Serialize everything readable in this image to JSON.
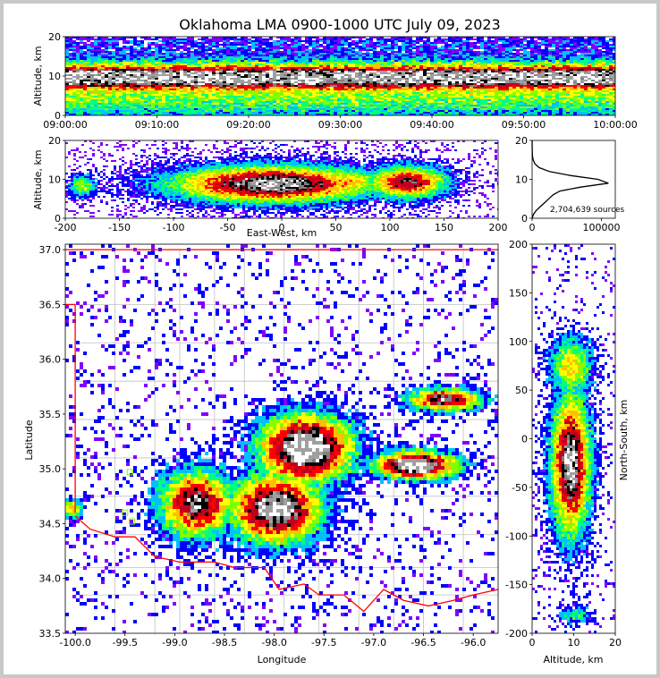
{
  "figure": {
    "title": "Oklahoma LMA 0900-1000 UTC July 09, 2023"
  },
  "colors": {
    "frame_bg": "#c8c8c8",
    "state_border": "#ff0000",
    "county_lines": "#c0c0c0",
    "density_scale": [
      "#8000ff",
      "#0000ff",
      "#00c0ff",
      "#00ff80",
      "#80ff00",
      "#ffff00",
      "#ffc000",
      "#ff0000",
      "#c00020",
      "#000000",
      "#ffffff"
    ]
  },
  "chart_data": [
    {
      "id": "time-altitude",
      "type": "heatmap",
      "title": "",
      "xlabel": "",
      "ylabel": "Altitude, km",
      "x_tick_labels": [
        "09:00:00",
        "09:10:00",
        "09:20:00",
        "09:30:00",
        "09:40:00",
        "09:50:00",
        "10:00:00"
      ],
      "y_ticks": [
        0,
        10,
        20
      ],
      "xlim": [
        "09:00:00",
        "10:00:00"
      ],
      "ylim": [
        0,
        20
      ],
      "description_bands_km": [
        {
          "from": 0,
          "to": 2,
          "level": "low"
        },
        {
          "from": 2,
          "to": 5,
          "level": "medium"
        },
        {
          "from": 5,
          "to": 8,
          "level": "high"
        },
        {
          "from": 8,
          "to": 11,
          "level": "very-high"
        },
        {
          "from": 11,
          "to": 14,
          "level": "high"
        },
        {
          "from": 14,
          "to": 17,
          "level": "medium"
        },
        {
          "from": 17,
          "to": 20,
          "level": "low"
        }
      ]
    },
    {
      "id": "east-west-altitude",
      "type": "heatmap",
      "xlabel": "East-West, km",
      "ylabel": "Altitude, km",
      "x_ticks": [
        -200,
        -150,
        -100,
        -50,
        0,
        50,
        100,
        150,
        200
      ],
      "y_ticks": [
        0,
        10,
        20
      ],
      "xlim": [
        -200,
        200
      ],
      "ylim": [
        0,
        20
      ]
    },
    {
      "id": "altitude-histogram",
      "type": "line",
      "x_ticks": [
        0,
        100000
      ],
      "x_tick_labels": [
        "0",
        "100000"
      ],
      "y_ticks": [
        0,
        10,
        20
      ],
      "xlim": [
        0,
        120000
      ],
      "ylim": [
        0,
        20
      ],
      "annotation": "2,704,639 sources",
      "points": [
        {
          "alt": 0,
          "count": 0
        },
        {
          "alt": 1,
          "count": 2000
        },
        {
          "alt": 2,
          "count": 6000
        },
        {
          "alt": 3,
          "count": 12000
        },
        {
          "alt": 4,
          "count": 18000
        },
        {
          "alt": 5,
          "count": 24000
        },
        {
          "alt": 6,
          "count": 30000
        },
        {
          "alt": 7,
          "count": 40000
        },
        {
          "alt": 8,
          "count": 70000
        },
        {
          "alt": 9,
          "count": 110000
        },
        {
          "alt": 10,
          "count": 95000
        },
        {
          "alt": 11,
          "count": 55000
        },
        {
          "alt": 12,
          "count": 25000
        },
        {
          "alt": 13,
          "count": 10000
        },
        {
          "alt": 14,
          "count": 4000
        },
        {
          "alt": 15,
          "count": 1500
        },
        {
          "alt": 16,
          "count": 500
        },
        {
          "alt": 17,
          "count": 200
        },
        {
          "alt": 18,
          "count": 80
        },
        {
          "alt": 20,
          "count": 0
        }
      ]
    },
    {
      "id": "plan-view",
      "type": "heatmap",
      "xlabel": "Longitude",
      "ylabel": "Latitude",
      "x_ticks": [
        -100.0,
        -99.5,
        -99.0,
        -98.5,
        -98.0,
        -97.5,
        -97.0,
        -96.5,
        -96.0
      ],
      "x_tick_labels": [
        "-100.0",
        "-99.5",
        "-99.0",
        "-98.5",
        "-98.0",
        "-97.5",
        "-97.0",
        "-96.5",
        "-96.0"
      ],
      "y_ticks": [
        33.5,
        34.0,
        34.5,
        35.0,
        35.5,
        36.0,
        36.5,
        37.0
      ],
      "y_tick_labels": [
        "33.5",
        "34.0",
        "34.5",
        "35.0",
        "35.5",
        "36.0",
        "36.5",
        "37.0"
      ],
      "xlim": [
        -100.1,
        -95.75
      ],
      "ylim": [
        33.5,
        37.05
      ],
      "cores": [
        {
          "lon": -98.0,
          "lat": 34.65,
          "spread_lon": 0.45,
          "spread_lat": 0.3,
          "level": "very-high"
        },
        {
          "lon": -97.7,
          "lat": 35.2,
          "spread_lon": 0.45,
          "spread_lat": 0.3,
          "level": "max"
        },
        {
          "lon": -96.6,
          "lat": 35.05,
          "spread_lon": 0.4,
          "spread_lat": 0.12,
          "level": "max"
        },
        {
          "lon": -96.3,
          "lat": 35.65,
          "spread_lon": 0.35,
          "spread_lat": 0.1,
          "level": "high"
        },
        {
          "lon": -98.8,
          "lat": 34.7,
          "spread_lon": 0.35,
          "spread_lat": 0.3,
          "level": "high"
        },
        {
          "lon": -100.05,
          "lat": 34.65,
          "spread_lon": 0.1,
          "spread_lat": 0.08,
          "level": "medium"
        }
      ]
    },
    {
      "id": "altitude-north-south",
      "type": "heatmap",
      "xlabel": "Altitude, km",
      "ylabel": "North-South, km",
      "x_ticks": [
        0,
        10,
        20
      ],
      "y_ticks": [
        -200,
        -150,
        -100,
        -50,
        0,
        50,
        100,
        150,
        200
      ],
      "xlim": [
        0,
        20
      ],
      "ylim": [
        -200,
        200
      ]
    }
  ]
}
